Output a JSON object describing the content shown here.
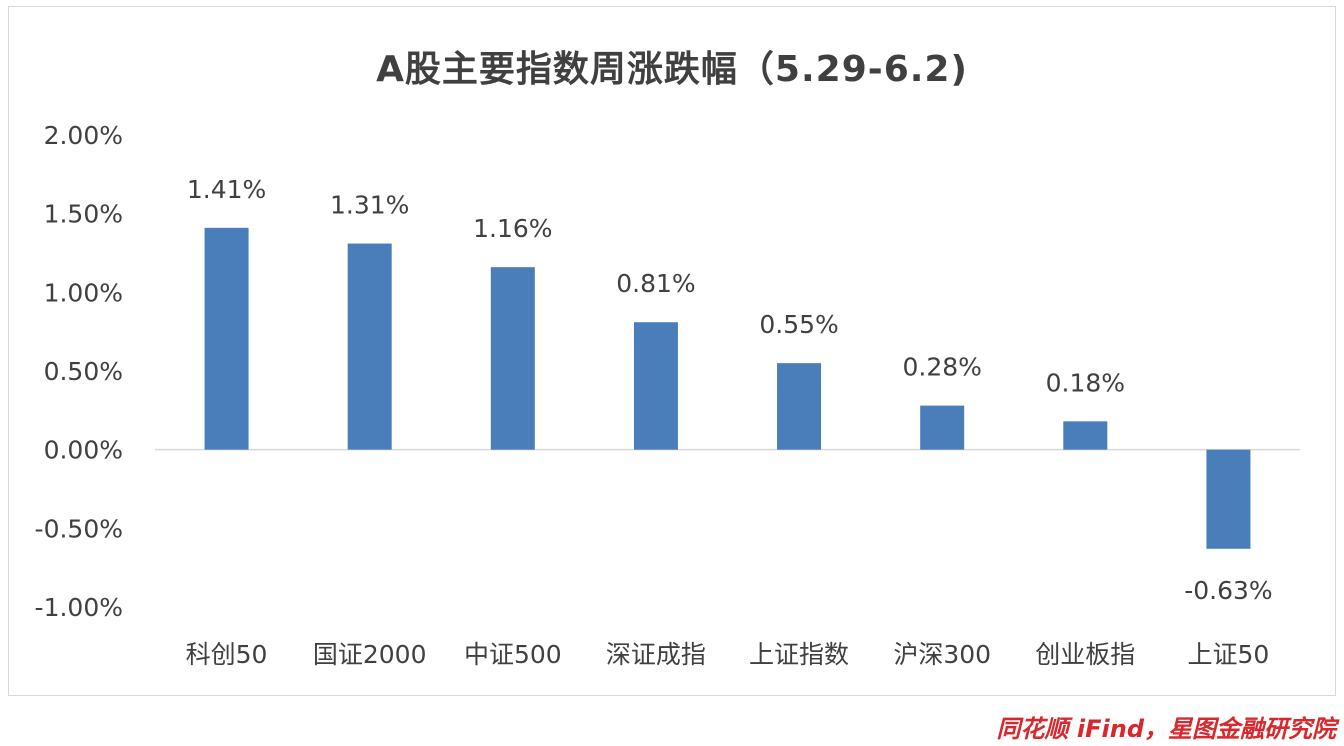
{
  "chart_data": {
    "type": "bar",
    "title": "A股主要指数周涨跌幅（5.29-6.2)",
    "categories": [
      "科创50",
      "国证2000",
      "中证500",
      "深证成指",
      "上证指数",
      "沪深300",
      "创业板指",
      "上证50"
    ],
    "values": [
      1.41,
      1.31,
      1.16,
      0.81,
      0.55,
      0.28,
      0.18,
      -0.63
    ],
    "value_labels": [
      "1.41%",
      "1.31%",
      "1.16%",
      "0.81%",
      "0.55%",
      "0.28%",
      "0.18%",
      "-0.63%"
    ],
    "y_ticks": [
      2.0,
      1.5,
      1.0,
      0.5,
      0.0,
      -0.5,
      -1.0
    ],
    "y_tick_labels": [
      "2.00%",
      "1.50%",
      "1.00%",
      "0.50%",
      "0.00%",
      "-0.50%",
      "-1.00%"
    ],
    "ylim": [
      -1.0,
      2.0
    ],
    "xlabel": "",
    "ylabel": "",
    "grid": false,
    "legend": "none",
    "bar_color": "#4a7ebb",
    "title_color": "#404040"
  },
  "watermark": "同花顺 iFind，星图金融研究院",
  "colors": {
    "watermark": "#d9282d",
    "axis_text": "#404040",
    "zero_line": "#d9d9d9"
  }
}
